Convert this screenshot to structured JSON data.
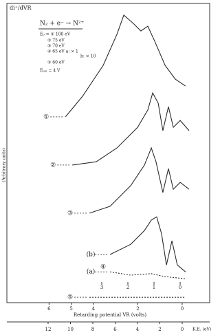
{
  "chart_data": {
    "type": "line",
    "y_label": "di⁺/dVR",
    "y_axis_title": "(Arbitrary units)",
    "reaction": "N₂ + e⁻ → N²⁺",
    "legend_text": [
      "E₀ = ① 100 eV",
      "② 75 eV",
      "③ 70 eV",
      "④ 65 eV   a: × 1",
      "b: × 10",
      "⑤ 60 eV",
      "Eᵢₒₙ = 4 V"
    ],
    "x_label": "Retarding potential VR (volts)",
    "xlim": [
      7.9,
      -1.24
    ],
    "xticks": [
      6,
      5,
      4,
      2,
      0
    ],
    "x2lim": [
      6.63,
      -1.13
    ],
    "x2ticks": [
      3,
      2,
      1,
      0
    ],
    "x3_label": "K.E. (eV)",
    "x3lim": [
      15.69,
      -2.46
    ],
    "x3ticks": [
      12,
      10,
      8,
      6,
      4,
      2,
      0
    ],
    "ylim": [
      0,
      100
    ],
    "color": "#2a2a2a",
    "series": [
      {
        "name": "①",
        "x": [
          5.26,
          4.49,
          3.56,
          2.94,
          2.63,
          2.17,
          1.86,
          1.55,
          1.24,
          0.77,
          0.31,
          -0.15
        ],
        "values": [
          62.1,
          69.0,
          79.3,
          89.7,
          96.1,
          93.1,
          90.8,
          92.4,
          87.4,
          79.3,
          74.7,
          72.4
        ]
      },
      {
        "name": "②",
        "x": [
          4.95,
          3.87,
          2.94,
          2.01,
          1.55,
          1.33,
          1.08,
          0.87,
          0.62,
          0.4,
          0.09,
          -0.31
        ],
        "values": [
          46.0,
          47.1,
          51.7,
          58.6,
          64.4,
          70.1,
          66.7,
          57.5,
          65.5,
          58.6,
          60.9,
          57.5
        ]
      },
      {
        "name": "③",
        "x": [
          4.18,
          3.25,
          2.32,
          1.7,
          1.39,
          1.18,
          0.87,
          0.62,
          0.4,
          0.09,
          -0.31
        ],
        "values": [
          29.9,
          32.2,
          39.1,
          46.0,
          51.7,
          47.1,
          36.8,
          44.8,
          37.9,
          40.2,
          37.9
        ]
      },
      {
        "name": "(b)",
        "x": [
          3.25,
          2.32,
          1.7,
          1.39,
          1.15,
          0.93,
          0.71,
          0.46,
          0.22,
          -0.15
        ],
        "values": [
          16.1,
          19.5,
          24.1,
          27.6,
          28.7,
          23.0,
          12.6,
          20.7,
          12.6,
          10.3
        ]
      },
      {
        "name": "(a)",
        "x": [
          3.25,
          2.32,
          1.39,
          0.77,
          -0.15
        ],
        "values": [
          10.3,
          9.2,
          9.7,
          8.7,
          8.0
        ]
      },
      {
        "name": "⑤",
        "x": [
          4.18,
          -0.15
        ],
        "values": [
          1.8,
          1.8
        ]
      }
    ],
    "curve_label_4": "④"
  }
}
